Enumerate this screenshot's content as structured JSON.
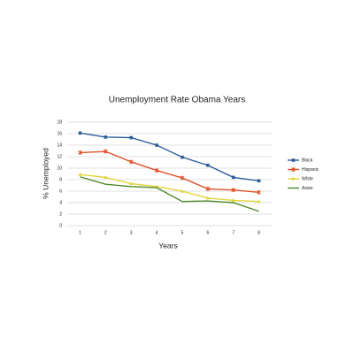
{
  "chart_data": {
    "type": "line",
    "title": "Unemployment Rate Obama Years",
    "x_label": "Years",
    "y_label": "% Unemployed",
    "categories": [
      "1",
      "2",
      "3",
      "4",
      "5",
      "6",
      "7",
      "8"
    ],
    "ylim": [
      0,
      18
    ],
    "yticks": [
      0,
      2,
      4,
      6,
      8,
      10,
      12,
      14,
      16,
      18
    ],
    "grid": true,
    "legend": "right",
    "series": [
      {
        "name": "Black",
        "color": "#2e5e9a",
        "marker": "square",
        "values": [
          16.1,
          15.4,
          15.3,
          14.0,
          11.9,
          10.5,
          8.4,
          7.8
        ]
      },
      {
        "name": "Hispanic",
        "color": "#e0522a",
        "marker": "star",
        "values": [
          12.7,
          12.9,
          11.1,
          9.6,
          8.3,
          6.4,
          6.2,
          5.8
        ]
      },
      {
        "name": "White",
        "color": "#e3d43c",
        "marker": "triangle",
        "values": [
          8.9,
          8.4,
          7.3,
          6.8,
          6.0,
          4.8,
          4.4,
          4.2
        ]
      },
      {
        "name": "Asian",
        "color": "#4e8a2a",
        "marker": "none",
        "values": [
          8.5,
          7.2,
          6.8,
          6.6,
          4.2,
          4.3,
          4.0,
          2.5
        ]
      }
    ]
  }
}
